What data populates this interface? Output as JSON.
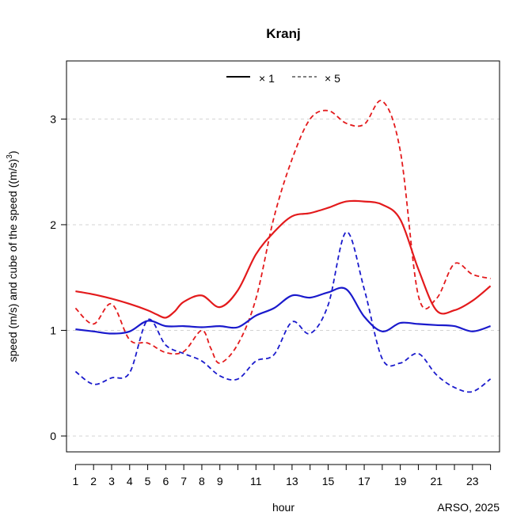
{
  "chart_data": {
    "type": "line",
    "title": "Kranj",
    "xlabel": "hour",
    "ylabel_main": "speed (m/s) and cube of the speed ((m/s)",
    "ylabel_sup": "3",
    "ylabel_tail": ")",
    "credit": "ARSO, 2025",
    "xlim": [
      0.5,
      24.5
    ],
    "ylim": [
      -0.15,
      3.55
    ],
    "x_ticks": [
      1,
      2,
      3,
      4,
      5,
      6,
      7,
      8,
      9,
      11,
      13,
      15,
      17,
      19,
      21,
      23
    ],
    "x_tick_labels": [
      "1",
      "2",
      "3",
      "4",
      "5",
      "6",
      "7",
      "8",
      "9",
      "11",
      "13",
      "15",
      "17",
      "19",
      "21",
      "23"
    ],
    "y_ticks": [
      0,
      1,
      2,
      3
    ],
    "y_tick_labels": [
      "0",
      "1",
      "2",
      "3"
    ],
    "grid": "horizontal dashed",
    "legend": {
      "placement": "top",
      "entries": [
        {
          "symbol": "×",
          "label": "1",
          "dash": "solid"
        },
        {
          "symbol": "×",
          "label": "5",
          "dash": "dashed"
        }
      ]
    },
    "series": [
      {
        "name": "red speed",
        "color": "#e31a1c",
        "dash": "solid",
        "points": [
          [
            1,
            1.37
          ],
          [
            2,
            1.34
          ],
          [
            3,
            1.3
          ],
          [
            4,
            1.25
          ],
          [
            5,
            1.19
          ],
          [
            5.5,
            1.15
          ],
          [
            6,
            1.12
          ],
          [
            6.5,
            1.18
          ],
          [
            7,
            1.27
          ],
          [
            8,
            1.33
          ],
          [
            9,
            1.22
          ],
          [
            10,
            1.38
          ],
          [
            11,
            1.72
          ],
          [
            12,
            1.93
          ],
          [
            13,
            2.08
          ],
          [
            14,
            2.11
          ],
          [
            15,
            2.16
          ],
          [
            16,
            2.22
          ],
          [
            17,
            2.22
          ],
          [
            18,
            2.19
          ],
          [
            19,
            2.05
          ],
          [
            20,
            1.58
          ],
          [
            21,
            1.19
          ],
          [
            22,
            1.19
          ],
          [
            23,
            1.28
          ],
          [
            24,
            1.42
          ]
        ]
      },
      {
        "name": "red cube",
        "color": "#e31a1c",
        "dash": "dashed",
        "points": [
          [
            1,
            1.21
          ],
          [
            2,
            1.06
          ],
          [
            3,
            1.25
          ],
          [
            4,
            0.91
          ],
          [
            5,
            0.88
          ],
          [
            6,
            0.79
          ],
          [
            7,
            0.8
          ],
          [
            8,
            1.0
          ],
          [
            8.5,
            0.83
          ],
          [
            9,
            0.69
          ],
          [
            10,
            0.87
          ],
          [
            11,
            1.3
          ],
          [
            12,
            2.07
          ],
          [
            13,
            2.62
          ],
          [
            14,
            3.0
          ],
          [
            15,
            3.08
          ],
          [
            16,
            2.96
          ],
          [
            17,
            2.95
          ],
          [
            18,
            3.17
          ],
          [
            19,
            2.7
          ],
          [
            20,
            1.33
          ],
          [
            21,
            1.3
          ],
          [
            22,
            1.63
          ],
          [
            23,
            1.53
          ],
          [
            24,
            1.49
          ]
        ]
      },
      {
        "name": "blue speed",
        "color": "#1a1acc",
        "dash": "solid",
        "points": [
          [
            1,
            1.01
          ],
          [
            2,
            0.99
          ],
          [
            3,
            0.97
          ],
          [
            4,
            0.99
          ],
          [
            5,
            1.09
          ],
          [
            6,
            1.04
          ],
          [
            7,
            1.04
          ],
          [
            8,
            1.03
          ],
          [
            9,
            1.04
          ],
          [
            10,
            1.03
          ],
          [
            11,
            1.14
          ],
          [
            12,
            1.21
          ],
          [
            13,
            1.33
          ],
          [
            14,
            1.31
          ],
          [
            15,
            1.36
          ],
          [
            16,
            1.39
          ],
          [
            17,
            1.13
          ],
          [
            18,
            0.99
          ],
          [
            19,
            1.07
          ],
          [
            20,
            1.06
          ],
          [
            21,
            1.05
          ],
          [
            22,
            1.04
          ],
          [
            23,
            0.99
          ],
          [
            24,
            1.04
          ]
        ]
      },
      {
        "name": "blue cube",
        "color": "#1a1acc",
        "dash": "dashed",
        "points": [
          [
            1,
            0.61
          ],
          [
            2,
            0.49
          ],
          [
            3,
            0.55
          ],
          [
            4,
            0.6
          ],
          [
            5,
            1.1
          ],
          [
            6,
            0.86
          ],
          [
            7,
            0.78
          ],
          [
            8,
            0.71
          ],
          [
            9,
            0.57
          ],
          [
            10,
            0.54
          ],
          [
            11,
            0.71
          ],
          [
            12,
            0.77
          ],
          [
            13,
            1.08
          ],
          [
            14,
            0.97
          ],
          [
            15,
            1.24
          ],
          [
            16,
            1.93
          ],
          [
            17,
            1.39
          ],
          [
            18,
            0.73
          ],
          [
            19,
            0.69
          ],
          [
            20,
            0.78
          ],
          [
            21,
            0.58
          ],
          [
            22,
            0.46
          ],
          [
            23,
            0.42
          ],
          [
            24,
            0.54
          ]
        ]
      }
    ]
  }
}
